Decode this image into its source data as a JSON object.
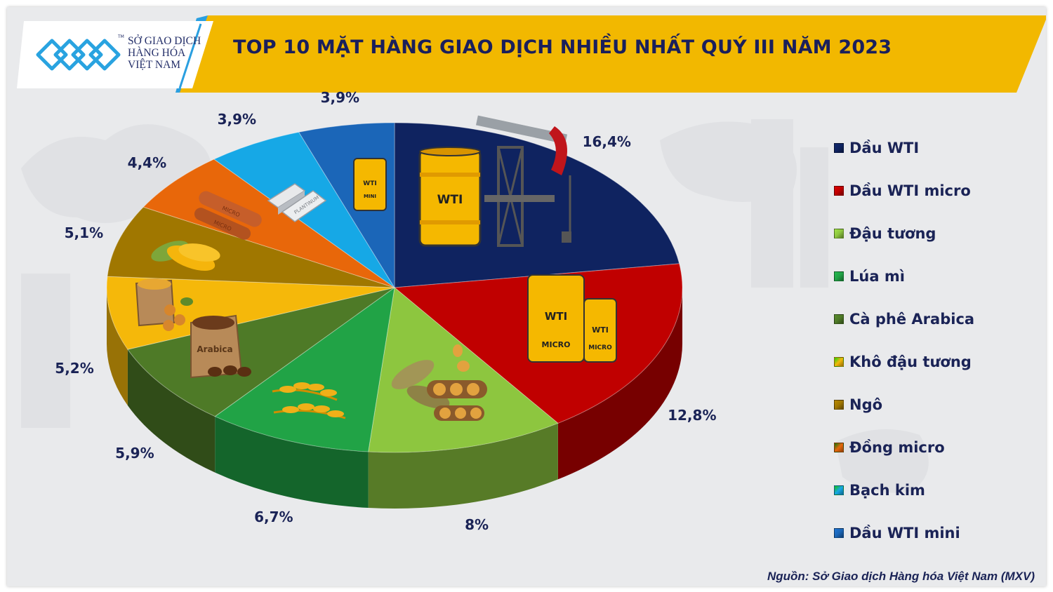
{
  "header": {
    "title": "TOP 10 MẶT HÀNG GIAO DỊCH NHIỀU NHẤT QUÝ III NĂM 2023",
    "logo_line1": "SỞ GIAO DỊCH",
    "logo_line2": "HÀNG HÓA",
    "logo_line3": "VIỆT NAM",
    "logo_tm": "TM",
    "band_color": "#f2b800",
    "title_color": "#1a1f5c"
  },
  "source": "Nguồn: Sở Giao dịch Hàng hóa Việt Nam (MXV)",
  "illustration_labels": {
    "wti": "WTI",
    "mini": "MINI",
    "micro": "MICRO",
    "platinum": "PLANTINUM",
    "arabica": "Arabica"
  },
  "chart_data": {
    "type": "pie",
    "title": "TOP 10 MẶT HÀNG GIAO DỊCH NHIỀU NHẤT QUÝ III NĂM 2023",
    "style": "3d",
    "legend_position": "right",
    "categories": [
      "Dầu WTI",
      "Dầu WTI micro",
      "Đậu tương",
      "Lúa mì",
      "Cà phê Arabica",
      "Khô đậu tương",
      "Ngô",
      "Đồng micro",
      "Bạch kim",
      "Dầu WTI mini"
    ],
    "values": [
      16.4,
      12.8,
      8,
      6.7,
      5.9,
      5.2,
      5.1,
      4.4,
      3.9,
      3.9
    ],
    "labels": [
      "16,4%",
      "12,8%",
      "8%",
      "6,7%",
      "5,9%",
      "5,2%",
      "5,1%",
      "4,4%",
      "3,9%",
      "3,9%"
    ],
    "colors": [
      "#0f2360",
      "#c00000",
      "#8dc63f",
      "#21a346",
      "#4e7a27",
      "#f5b80a",
      "#a07700",
      "#e8670a",
      "#16a8e6",
      "#1b66b8"
    ],
    "units": "%"
  }
}
